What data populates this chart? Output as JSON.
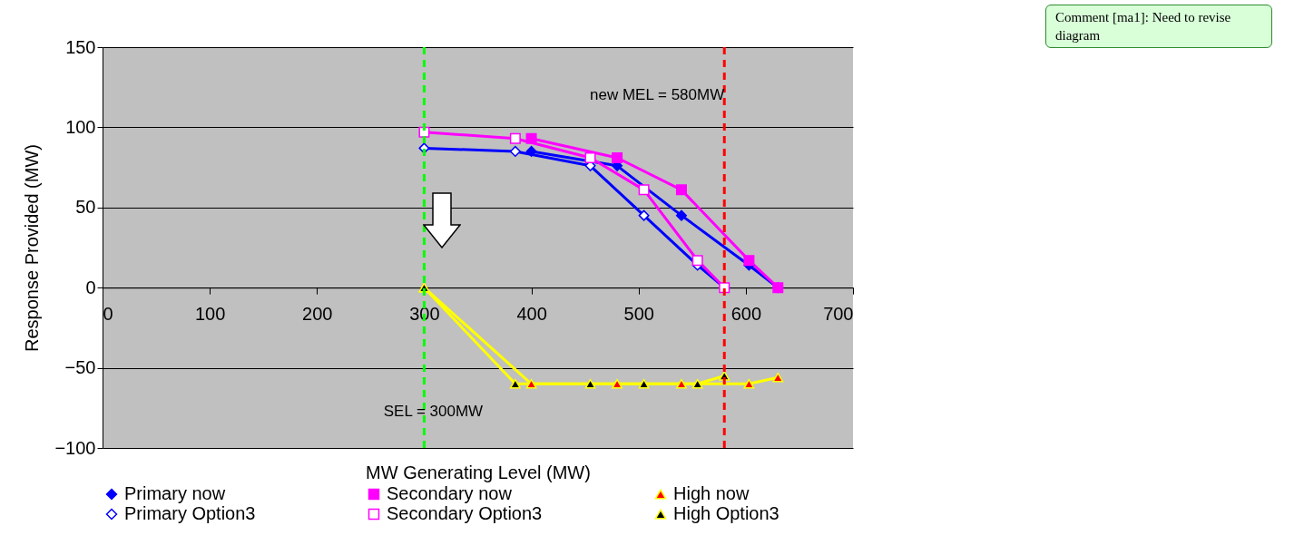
{
  "chart_data": {
    "type": "line",
    "xlabel": "MW Generating Level (MW)",
    "ylabel": "Response Provided (MW)",
    "xlim": [
      0,
      700
    ],
    "xticks": [
      0,
      100,
      200,
      300,
      400,
      500,
      600,
      700
    ],
    "ylim": [
      -100,
      150
    ],
    "yticks": [
      -100,
      -50,
      0,
      50,
      100,
      150
    ],
    "grid": "y",
    "legend": "bottom",
    "line_style": "solid",
    "series": [
      {
        "name": "Primary now",
        "color": "#0000ff",
        "marker": "diamond",
        "x": [
          400,
          480,
          540,
          603,
          630
        ],
        "values": [
          85,
          76,
          45,
          14,
          0
        ]
      },
      {
        "name": "Secondary now",
        "color": "#ff00ff",
        "marker": "square",
        "x": [
          400,
          480,
          540,
          603,
          630
        ],
        "values": [
          93,
          81,
          61,
          17,
          0
        ]
      },
      {
        "name": "High now",
        "color": "#ffff00",
        "marker": "triangle",
        "x": [
          300,
          400,
          480,
          540,
          603,
          630
        ],
        "values": [
          0,
          -60,
          -60,
          -60,
          -60,
          -56
        ]
      },
      {
        "name": "Primary Option3",
        "color": "#0000ff",
        "marker": "diamond",
        "x": [
          300,
          385,
          455,
          505,
          555,
          580
        ],
        "values": [
          87,
          85,
          76,
          45,
          14,
          0
        ]
      },
      {
        "name": "Secondary Option3",
        "color": "#ff00ff",
        "marker": "square",
        "x": [
          300,
          385,
          455,
          505,
          555,
          580
        ],
        "values": [
          97,
          93,
          81,
          61,
          17,
          0
        ]
      },
      {
        "name": "High Option3",
        "color": "#ffff00",
        "marker": "triangle",
        "x": [
          300,
          385,
          455,
          505,
          555,
          580
        ],
        "values": [
          0,
          -60,
          -60,
          -60,
          -60,
          -55
        ]
      }
    ],
    "ref_lines": [
      {
        "axis": "x",
        "value": 300,
        "label": "SEL = 300MW",
        "color": "#00ff00",
        "line_style": "dashed"
      },
      {
        "axis": "x",
        "value": 580,
        "label": "new MEL = 580MW",
        "color": "#ff0000",
        "line_style": "dashed"
      }
    ],
    "annotations": [
      "Comment [ma1]: Need to revise diagram"
    ]
  }
}
